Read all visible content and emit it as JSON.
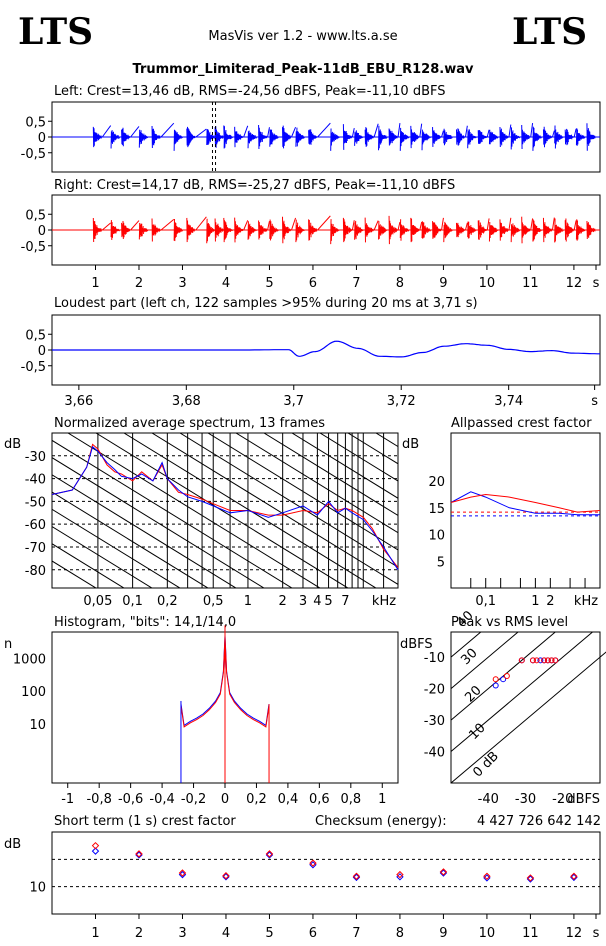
{
  "header": {
    "logo_left": "LTS",
    "logo_right": "LTS",
    "app_title": "MasVis ver 1.2 - www.lts.a.se",
    "file_name": "Trummor_Limiterad_Peak-11dB_EBU_R128.wav"
  },
  "colors": {
    "left": "#0000ff",
    "right": "#ff0000"
  },
  "chart_data": [
    {
      "type": "line",
      "title": "Left: Crest=13,46 dB, RMS=-24,56 dBFS, Peak=-11,10 dBFS",
      "yticks": [
        "0,5",
        "0",
        "-0,5"
      ],
      "ylim": [
        -1,
        1
      ],
      "xlim": [
        0,
        12.6
      ],
      "marker_x": [
        3.69,
        3.76
      ],
      "bursts": [
        0.95,
        1.35,
        1.6,
        2.0,
        2.3,
        2.8,
        3.1,
        3.55,
        3.75,
        3.95,
        4.2,
        4.5,
        4.75,
        5.0,
        5.3,
        5.6,
        5.9,
        6.4,
        6.7,
        6.95,
        7.2,
        7.5,
        7.75,
        8.0,
        8.25,
        8.5,
        8.75,
        9.0,
        9.3,
        9.55,
        9.8,
        10.05,
        10.3,
        10.55,
        10.8,
        11.05,
        11.3,
        11.55,
        11.8,
        12.05,
        12.3
      ],
      "series": [
        {
          "name": "Left",
          "color": "#0000ff"
        }
      ]
    },
    {
      "type": "line",
      "title": "Right: Crest=14,17 dB, RMS=-25,27 dBFS, Peak=-11,10 dBFS",
      "yticks": [
        "0,5",
        "0",
        "-0,5"
      ],
      "xticks": [
        "1",
        "2",
        "3",
        "4",
        "5",
        "6",
        "7",
        "8",
        "9",
        "10",
        "11",
        "12",
        "s"
      ],
      "ylim": [
        -1,
        1
      ],
      "xlim": [
        0,
        12.6
      ],
      "series": [
        {
          "name": "Right",
          "color": "#ff0000"
        }
      ]
    },
    {
      "type": "line",
      "title": "Loudest part (left  ch, 122 samples >95% during 20 ms at 3,71 s)",
      "yticks": [
        "0,5",
        "0",
        "-0,5"
      ],
      "xticks": [
        "3,66",
        "3,68",
        "3,7",
        "3,72",
        "3,74",
        "s"
      ],
      "xlim": [
        3.655,
        3.757
      ],
      "ylim": [
        -1,
        1
      ],
      "x": [
        3.655,
        3.69,
        3.699,
        3.701,
        3.704,
        3.708,
        3.712,
        3.716,
        3.72,
        3.724,
        3.728,
        3.732,
        3.736,
        3.74,
        3.744,
        3.748,
        3.752,
        3.757
      ],
      "y": [
        0,
        0,
        0.01,
        -0.2,
        -0.05,
        0.28,
        0.05,
        -0.2,
        -0.22,
        -0.08,
        0.12,
        0.2,
        0.15,
        0.02,
        -0.05,
        -0.02,
        -0.1,
        -0.12
      ],
      "series": [
        {
          "name": "Left",
          "color": "#0000ff"
        }
      ]
    },
    {
      "type": "line",
      "title": "Normalized average spectrum, 13 frames",
      "ylabel": "dB",
      "yticks": [
        "-30",
        "-40",
        "-50",
        "-60",
        "-70",
        "-80"
      ],
      "xticks": [
        "0,05",
        "0,1",
        "0,2",
        "0,5",
        "1",
        "2",
        "3",
        "4",
        "5",
        "7",
        "kHz"
      ],
      "x": [
        0.02,
        0.03,
        0.04,
        0.045,
        0.05,
        0.06,
        0.07,
        0.08,
        0.1,
        0.12,
        0.15,
        0.18,
        0.2,
        0.25,
        0.3,
        0.4,
        0.5,
        0.7,
        1,
        1.5,
        2,
        3,
        4,
        5,
        6,
        7,
        8,
        10,
        12,
        15,
        20
      ],
      "left": [
        -47,
        -45,
        -35,
        -26,
        -28,
        -33,
        -36,
        -39,
        -40,
        -38,
        -41,
        -33,
        -40,
        -45,
        -48,
        -50,
        -52,
        -55,
        -54,
        -57,
        -55,
        -52,
        -56,
        -50,
        -55,
        -53,
        -55,
        -58,
        -63,
        -70,
        -80
      ],
      "right": [
        -47,
        -45,
        -35,
        -25,
        -27,
        -34,
        -37,
        -38,
        -41,
        -37,
        -41,
        -34,
        -40,
        -46,
        -47,
        -49,
        -51,
        -54,
        -54,
        -56,
        -56,
        -54,
        -55,
        -51,
        -54,
        -53,
        -54,
        -57,
        -62,
        -71,
        -79
      ],
      "series": [
        {
          "name": "Left",
          "color": "#0000ff"
        },
        {
          "name": "Right",
          "color": "#ff0000"
        }
      ]
    },
    {
      "type": "line",
      "title": "Allpassed crest factor",
      "ylabel": "dB",
      "yticks": [
        "20",
        "15",
        "10",
        "5"
      ],
      "xticks": [
        "0,1",
        "1",
        "2",
        "kHz"
      ],
      "x": [
        0.02,
        0.05,
        0.1,
        0.3,
        1,
        3,
        7,
        20
      ],
      "left": [
        16,
        18,
        17,
        15,
        14,
        14,
        13.7,
        13.7
      ],
      "right": [
        16,
        17,
        17.5,
        17,
        16,
        15,
        14.2,
        14.5
      ],
      "left_ref": 13.5,
      "right_ref": 14.2,
      "series": [
        {
          "name": "Left",
          "color": "#0000ff"
        },
        {
          "name": "Right",
          "color": "#ff0000"
        }
      ]
    },
    {
      "type": "line",
      "title": "Histogram, \"bits\": 14,1/14,0",
      "ylabel": "n",
      "yticks": [
        "1000",
        "100",
        "10"
      ],
      "xticks": [
        "-1",
        "-0,8",
        "-0,6",
        "-0,4",
        "-0,2",
        "0",
        "0,2",
        "0,4",
        "0,6",
        "0,8",
        "1"
      ],
      "x": [
        -0.28,
        -0.26,
        -0.22,
        -0.18,
        -0.14,
        -0.1,
        -0.06,
        -0.03,
        -0.01,
        0,
        0.01,
        0.03,
        0.06,
        0.1,
        0.14,
        0.18,
        0.22,
        0.26,
        0.28
      ],
      "counts": [
        40,
        9,
        12,
        15,
        20,
        30,
        50,
        90,
        400,
        5000,
        400,
        90,
        50,
        30,
        20,
        15,
        12,
        9,
        40
      ],
      "series": [
        {
          "name": "Left",
          "color": "#0000ff"
        },
        {
          "name": "Right",
          "color": "#ff0000"
        }
      ]
    },
    {
      "type": "scatter",
      "title": "Peak vs RMS level",
      "ylabel": "dBFS",
      "xlabel": "dBFS",
      "yticks": [
        "-10",
        "-20",
        "-30",
        "-40"
      ],
      "xticks": [
        "-40",
        "-30",
        "-20"
      ],
      "diag_labels": [
        "40",
        "30",
        "20",
        "10",
        "0 dB"
      ],
      "left": [
        [
          -38,
          -19
        ],
        [
          -36,
          -17
        ],
        [
          -31,
          -11
        ],
        [
          -28,
          -11
        ],
        [
          -26,
          -11
        ],
        [
          -25,
          -11
        ],
        [
          -24,
          -11
        ],
        [
          -23,
          -11
        ],
        [
          -22,
          -11
        ]
      ],
      "right": [
        [
          -38,
          -17
        ],
        [
          -35,
          -16
        ],
        [
          -31,
          -11
        ],
        [
          -28,
          -11
        ],
        [
          -27,
          -11
        ],
        [
          -25,
          -11
        ],
        [
          -24,
          -11
        ],
        [
          -23,
          -11
        ],
        [
          -22,
          -11
        ]
      ],
      "series": [
        {
          "name": "Left",
          "color": "#0000ff"
        },
        {
          "name": "Right",
          "color": "#ff0000"
        }
      ]
    },
    {
      "type": "scatter",
      "title": "Short term (1 s) crest factor",
      "checksum_label": "Checksum (energy):",
      "checksum_value": "4 427 726 642 142",
      "ylabel": "dB",
      "yticks": [
        "10"
      ],
      "xticks": [
        "1",
        "2",
        "3",
        "4",
        "5",
        "6",
        "7",
        "8",
        "9",
        "10",
        "11",
        "12",
        "s"
      ],
      "x": [
        1,
        2,
        3,
        4,
        5,
        6,
        7,
        8,
        9,
        10,
        11,
        12
      ],
      "left": [
        16.5,
        15.8,
        12.2,
        11.8,
        15.8,
        14.0,
        11.7,
        11.8,
        12.5,
        11.6,
        11.4,
        11.7
      ],
      "right": [
        17.5,
        16.0,
        12.5,
        12.0,
        16.0,
        14.3,
        11.9,
        12.2,
        12.7,
        11.9,
        11.6,
        11.9
      ],
      "series": [
        {
          "name": "Left",
          "color": "#0000ff"
        },
        {
          "name": "Right",
          "color": "#ff0000"
        }
      ]
    }
  ]
}
